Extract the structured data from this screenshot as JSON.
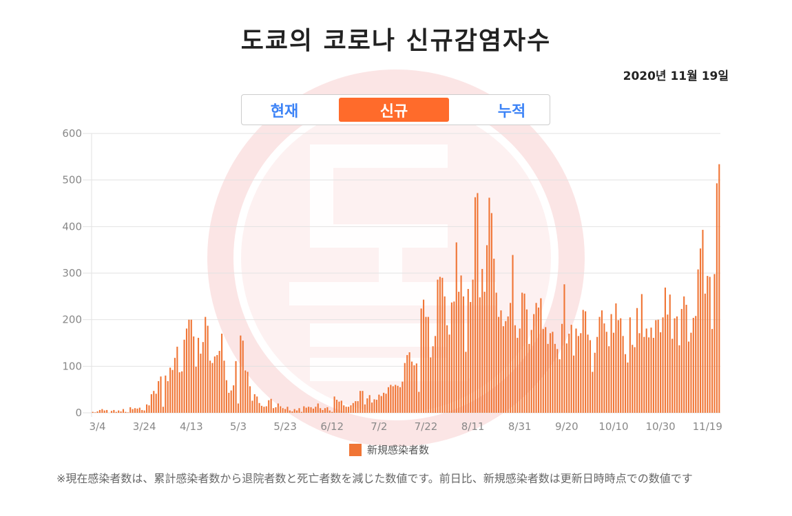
{
  "header": {
    "title": "도쿄의 코로나 신규감염자수",
    "date": "2020년 11월 19일"
  },
  "tabs": [
    {
      "label": "현재",
      "active": false
    },
    {
      "label": "신규",
      "active": true
    },
    {
      "label": "누적",
      "active": false
    }
  ],
  "watermark_text": "도쿄",
  "colors": {
    "bar": "#f07535",
    "tab_active": "#ff6b2b",
    "tab_text": "#3b82f6",
    "watermark": "#e03030"
  },
  "note": "※現在感染者数は、累計感染者数から退院者数と死亡者数を減じた数値です。前日比、新規感染者数は更新日時時点での数値です",
  "chart_data": {
    "type": "bar",
    "title": "",
    "xlabel": "",
    "ylabel": "",
    "ylim": [
      0,
      600
    ],
    "yticks": [
      0,
      100,
      200,
      300,
      400,
      500,
      600
    ],
    "xticks": [
      "3/4",
      "3/24",
      "4/13",
      "5/3",
      "5/23",
      "6/12",
      "7/2",
      "7/22",
      "8/11",
      "8/31",
      "9/20",
      "10/10",
      "10/30",
      "11/19"
    ],
    "grid": true,
    "legend": "bottom",
    "series": [
      {
        "name": "新規感染者数",
        "start_date": "3/2",
        "end_date": "11/19",
        "values": [
          2,
          1,
          3,
          6,
          8,
          5,
          6,
          0,
          4,
          6,
          2,
          5,
          3,
          8,
          2,
          1,
          12,
          8,
          10,
          9,
          11,
          6,
          5,
          18,
          16,
          40,
          47,
          41,
          68,
          78,
          13,
          80,
          68,
          97,
          92,
          118,
          142,
          87,
          89,
          157,
          181,
          200,
          200,
          164,
          99,
          161,
          127,
          152,
          206,
          187,
          112,
          107,
          121,
          124,
          133,
          170,
          112,
          70,
          43,
          48,
          59,
          111,
          20,
          166,
          155,
          91,
          88,
          57,
          26,
          40,
          35,
          21,
          15,
          13,
          14,
          27,
          30,
          10,
          12,
          20,
          14,
          10,
          8,
          13,
          5,
          3,
          8,
          5,
          10,
          2,
          14,
          11,
          13,
          12,
          9,
          13,
          20,
          10,
          6,
          10,
          12,
          5,
          2,
          35,
          28,
          24,
          26,
          16,
          13,
          13,
          16,
          21,
          25,
          25,
          47,
          47,
          18,
          31,
          38,
          22,
          29,
          28,
          39,
          36,
          43,
          41,
          55,
          60,
          57,
          60,
          58,
          55,
          67,
          107,
          124,
          130,
          110,
          102,
          106,
          45,
          224,
          243,
          206,
          206,
          119,
          143,
          165,
          286,
          292,
          290,
          250,
          188,
          168,
          237,
          239,
          366,
          260,
          295,
          250,
          131,
          266,
          238,
          286,
          463,
          472,
          248,
          309,
          260,
          360,
          462,
          429,
          331,
          258,
          206,
          220,
          186,
          197,
          207,
          236,
          339,
          188,
          161,
          181,
          258,
          256,
          222,
          148,
          178,
          212,
          236,
          226,
          246,
          180,
          184,
          148,
          171,
          174,
          148,
          137,
          115,
          191,
          276,
          149,
          170,
          189,
          123,
          181,
          165,
          171,
          221,
          218,
          168,
          156,
          88,
          129,
          163,
          206,
          220,
          192,
          174,
          143,
          212,
          172,
          235,
          199,
          203,
          165,
          126,
          108,
          205,
          146,
          141,
          225,
          171,
          255,
          163,
          181,
          162,
          183,
          161,
          199,
          200,
          173,
          205,
          269,
          211,
          254,
          159,
          203,
          207,
          145,
          223,
          250,
          232,
          153,
          172,
          204,
          208,
          308,
          353,
          393,
          256,
          294,
          292,
          180,
          298,
          493,
          534
        ]
      }
    ]
  },
  "legend": {
    "label": "新規感染者数"
  }
}
